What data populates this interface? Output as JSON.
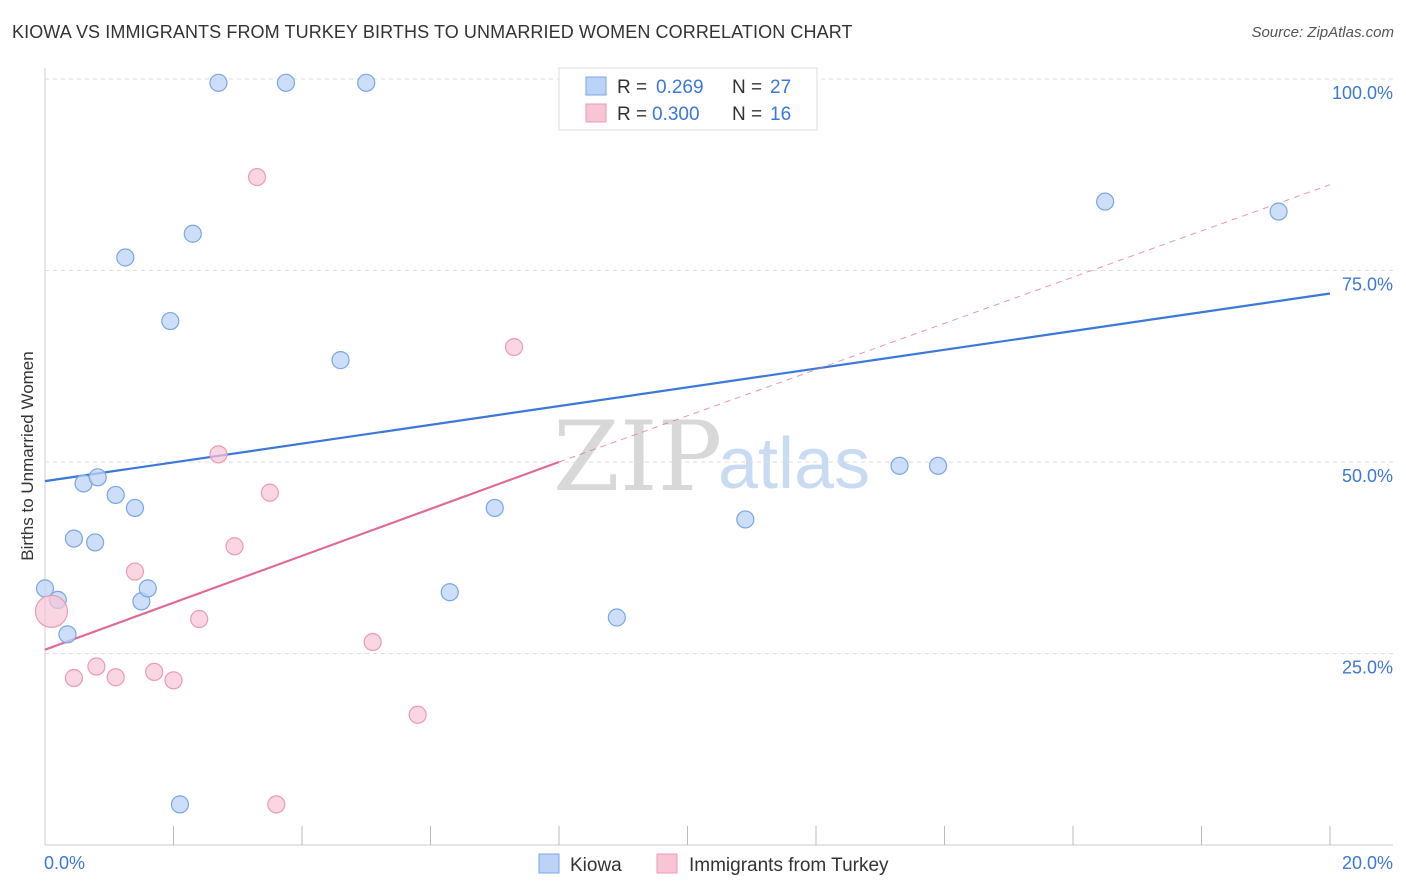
{
  "header": {
    "title": "KIOWA VS IMMIGRANTS FROM TURKEY BIRTHS TO UNMARRIED WOMEN CORRELATION CHART",
    "source": "Source: ZipAtlas.com"
  },
  "watermark": {
    "zip": "ZIP",
    "atlas": "atlas"
  },
  "colors": {
    "kiowa": "#3b78d8",
    "kiowa_fill": "#bcd3f5",
    "turkey": "#e06a93",
    "turkey_fill": "#f8c5d5",
    "tick": "#3b78d8",
    "grid": "#dddddd"
  },
  "legend": {
    "r_label": "R =",
    "n_label": "N =",
    "kiowa": {
      "r": "0.269",
      "n": "27"
    },
    "turkey": {
      "r": "0.300",
      "n": "16"
    }
  },
  "chart_data": {
    "type": "scatter",
    "title": "KIOWA VS IMMIGRANTS FROM TURKEY BIRTHS TO UNMARRIED WOMEN CORRELATION CHART",
    "xlabel": "",
    "ylabel": "Births to Unmarried Women",
    "xlim": [
      0,
      20
    ],
    "ylim": [
      0,
      100
    ],
    "x_tick_labels": {
      "left": "0.0%",
      "right": "20.0%"
    },
    "y_ticks": [
      {
        "value": 25,
        "label": "25.0%"
      },
      {
        "value": 50,
        "label": "50.0%"
      },
      {
        "value": 75,
        "label": "75.0%"
      },
      {
        "value": 100,
        "label": "100.0%"
      }
    ],
    "grid": true,
    "series": [
      {
        "name": "Kiowa",
        "r": 0.269,
        "n": 27,
        "trend": {
          "x": [
            0,
            20
          ],
          "y": [
            47.5,
            72.0
          ],
          "style": "solid"
        },
        "points": [
          {
            "x": 0.0,
            "y": 33.5
          },
          {
            "x": 0.2,
            "y": 32.0
          },
          {
            "x": 0.35,
            "y": 27.5
          },
          {
            "x": 0.45,
            "y": 40.0
          },
          {
            "x": 0.6,
            "y": 47.2
          },
          {
            "x": 0.78,
            "y": 39.5
          },
          {
            "x": 0.82,
            "y": 48.0
          },
          {
            "x": 1.1,
            "y": 45.7
          },
          {
            "x": 1.25,
            "y": 76.7
          },
          {
            "x": 1.4,
            "y": 44.0
          },
          {
            "x": 1.5,
            "y": 31.8
          },
          {
            "x": 1.6,
            "y": 33.5
          },
          {
            "x": 1.95,
            "y": 68.4
          },
          {
            "x": 2.1,
            "y": 5.3
          },
          {
            "x": 2.3,
            "y": 79.8
          },
          {
            "x": 2.7,
            "y": 99.5
          },
          {
            "x": 3.75,
            "y": 99.5
          },
          {
            "x": 4.6,
            "y": 63.3
          },
          {
            "x": 5.0,
            "y": 99.5
          },
          {
            "x": 6.3,
            "y": 33.0
          },
          {
            "x": 7.0,
            "y": 44.0
          },
          {
            "x": 8.9,
            "y": 29.7
          },
          {
            "x": 10.9,
            "y": 42.5
          },
          {
            "x": 13.3,
            "y": 49.5
          },
          {
            "x": 13.9,
            "y": 49.5
          },
          {
            "x": 16.5,
            "y": 84.0
          },
          {
            "x": 19.2,
            "y": 82.7
          }
        ]
      },
      {
        "name": "Immigrants from Turkey",
        "r": 0.3,
        "n": 16,
        "trend": {
          "x": [
            0,
            8
          ],
          "y": [
            25.5,
            50.0
          ],
          "style": "solid",
          "extension": {
            "x": [
              8,
              20
            ],
            "y": [
              50.0,
              86.2
            ],
            "style": "dashed"
          }
        },
        "points": [
          {
            "x": 0.1,
            "y": 30.5,
            "size": "large"
          },
          {
            "x": 0.45,
            "y": 21.8
          },
          {
            "x": 0.8,
            "y": 23.3
          },
          {
            "x": 1.1,
            "y": 21.9
          },
          {
            "x": 1.4,
            "y": 35.7
          },
          {
            "x": 1.7,
            "y": 22.6
          },
          {
            "x": 2.0,
            "y": 21.5
          },
          {
            "x": 2.4,
            "y": 29.5
          },
          {
            "x": 2.7,
            "y": 51.0
          },
          {
            "x": 2.95,
            "y": 39.0
          },
          {
            "x": 3.3,
            "y": 87.2
          },
          {
            "x": 3.5,
            "y": 46.0
          },
          {
            "x": 3.6,
            "y": 5.3
          },
          {
            "x": 5.1,
            "y": 26.5
          },
          {
            "x": 5.8,
            "y": 17.0
          },
          {
            "x": 7.3,
            "y": 65.0
          }
        ]
      }
    ]
  },
  "bottom_legend": {
    "kiowa": "Kiowa",
    "turkey": "Immigrants from Turkey"
  }
}
